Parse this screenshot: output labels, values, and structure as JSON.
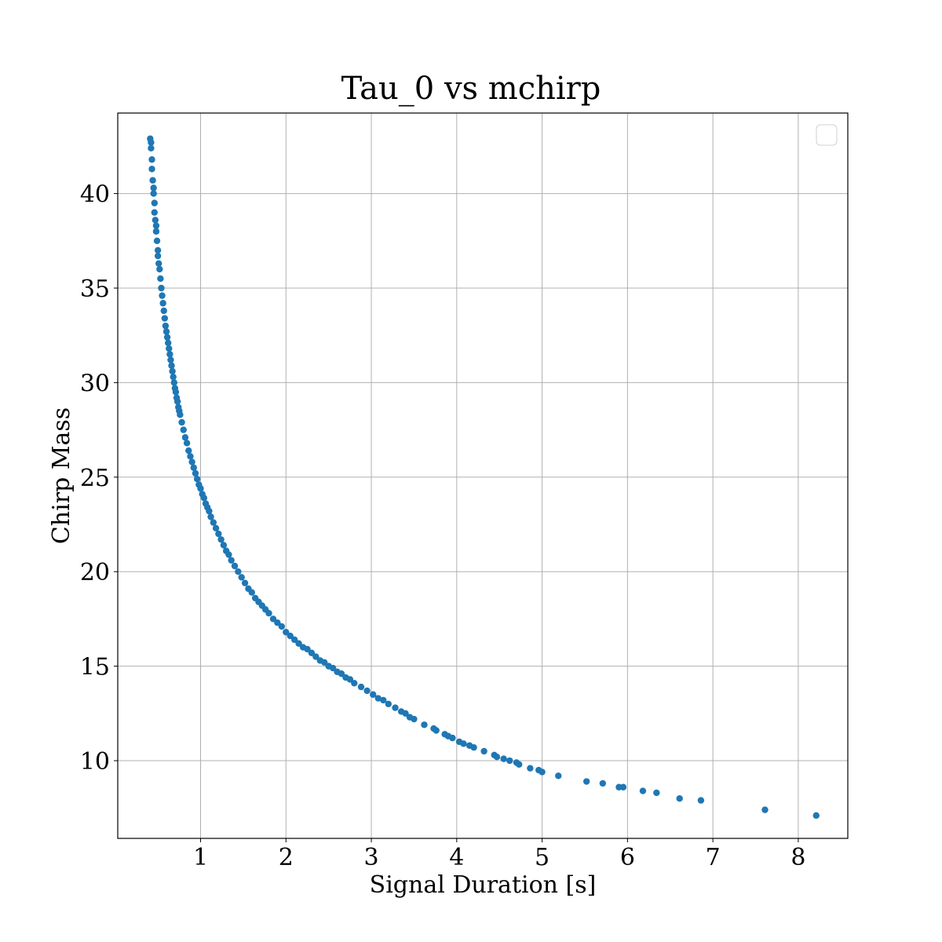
{
  "chart_data": {
    "type": "scatter",
    "title": "Tau_0 vs mchirp",
    "xlabel": "Signal Duration [s]",
    "ylabel": "Chirp Mass",
    "xlim": [
      0.03,
      8.58
    ],
    "ylim": [
      5.89,
      44.26
    ],
    "xticks": [
      1,
      2,
      3,
      4,
      5,
      6,
      7,
      8
    ],
    "yticks": [
      10,
      15,
      20,
      25,
      30,
      35,
      40
    ],
    "grid": true,
    "legend": "top-right, empty",
    "point_color": "#1f77b4",
    "series": [
      {
        "x": [
          0.41,
          0.42,
          0.42,
          0.43,
          0.43,
          0.44,
          0.45,
          0.45,
          0.46,
          0.46,
          0.47,
          0.48,
          0.48,
          0.49,
          0.5,
          0.5,
          0.51,
          0.52,
          0.53,
          0.54,
          0.55,
          0.56,
          0.57,
          0.58,
          0.59,
          0.6,
          0.61,
          0.62,
          0.63,
          0.64,
          0.65,
          0.66,
          0.67,
          0.68,
          0.69,
          0.7,
          0.71,
          0.72,
          0.73,
          0.74,
          0.75,
          0.76,
          0.78,
          0.8,
          0.82,
          0.84,
          0.86,
          0.88,
          0.9,
          0.92,
          0.94,
          0.96,
          0.98,
          1.0,
          1.02,
          1.04,
          1.06,
          1.08,
          1.1,
          1.12,
          1.15,
          1.18,
          1.21,
          1.24,
          1.27,
          1.3,
          1.33,
          1.36,
          1.4,
          1.44,
          1.48,
          1.52,
          1.56,
          1.6,
          1.64,
          1.68,
          1.72,
          1.76,
          1.8,
          1.85,
          1.9,
          1.95,
          2.0,
          2.05,
          2.1,
          2.15,
          2.2,
          2.25,
          2.3,
          2.35,
          2.4,
          2.45,
          2.5,
          2.55,
          2.6,
          2.65,
          2.7,
          2.75,
          2.8,
          2.88,
          2.95,
          3.02,
          3.08,
          3.14,
          3.2,
          3.28,
          3.35,
          3.4,
          3.45,
          3.5,
          3.62,
          3.73,
          3.76,
          3.86,
          3.9,
          3.95,
          4.03,
          4.08,
          4.15,
          4.2,
          4.32,
          4.44,
          4.47,
          4.55,
          4.62,
          4.7,
          4.73,
          4.86,
          4.96,
          5.0,
          5.19,
          5.52,
          5.71,
          5.9,
          5.95,
          6.18,
          6.34,
          6.61,
          6.86,
          7.61,
          8.21
        ],
        "y": [
          42.9,
          42.7,
          42.4,
          41.8,
          41.3,
          40.7,
          40.3,
          40.0,
          39.5,
          39.0,
          38.6,
          38.3,
          38.0,
          37.5,
          37.0,
          36.7,
          36.3,
          36.0,
          35.5,
          35.0,
          34.6,
          34.2,
          33.8,
          33.4,
          33.0,
          32.7,
          32.4,
          32.1,
          31.8,
          31.5,
          31.2,
          30.9,
          30.6,
          30.3,
          30.0,
          29.7,
          29.5,
          29.2,
          29.0,
          28.7,
          28.5,
          28.3,
          27.9,
          27.5,
          27.1,
          26.8,
          26.4,
          26.1,
          25.8,
          25.5,
          25.2,
          24.9,
          24.6,
          24.4,
          24.1,
          23.9,
          23.6,
          23.4,
          23.2,
          22.9,
          22.6,
          22.3,
          22.0,
          21.7,
          21.4,
          21.1,
          20.9,
          20.6,
          20.3,
          20.0,
          19.7,
          19.4,
          19.1,
          18.9,
          18.6,
          18.4,
          18.2,
          18.0,
          17.8,
          17.5,
          17.3,
          17.1,
          16.8,
          16.6,
          16.4,
          16.2,
          16.0,
          15.9,
          15.7,
          15.5,
          15.3,
          15.2,
          15.0,
          14.9,
          14.7,
          14.6,
          14.4,
          14.3,
          14.1,
          13.9,
          13.7,
          13.5,
          13.3,
          13.2,
          13.0,
          12.8,
          12.6,
          12.5,
          12.3,
          12.2,
          11.9,
          11.7,
          11.6,
          11.4,
          11.3,
          11.2,
          11.0,
          10.9,
          10.8,
          10.7,
          10.5,
          10.3,
          10.2,
          10.1,
          10.0,
          9.9,
          9.8,
          9.6,
          9.5,
          9.4,
          9.2,
          8.9,
          8.8,
          8.6,
          8.6,
          8.4,
          8.3,
          8.0,
          7.9,
          7.4,
          7.1
        ]
      }
    ]
  }
}
